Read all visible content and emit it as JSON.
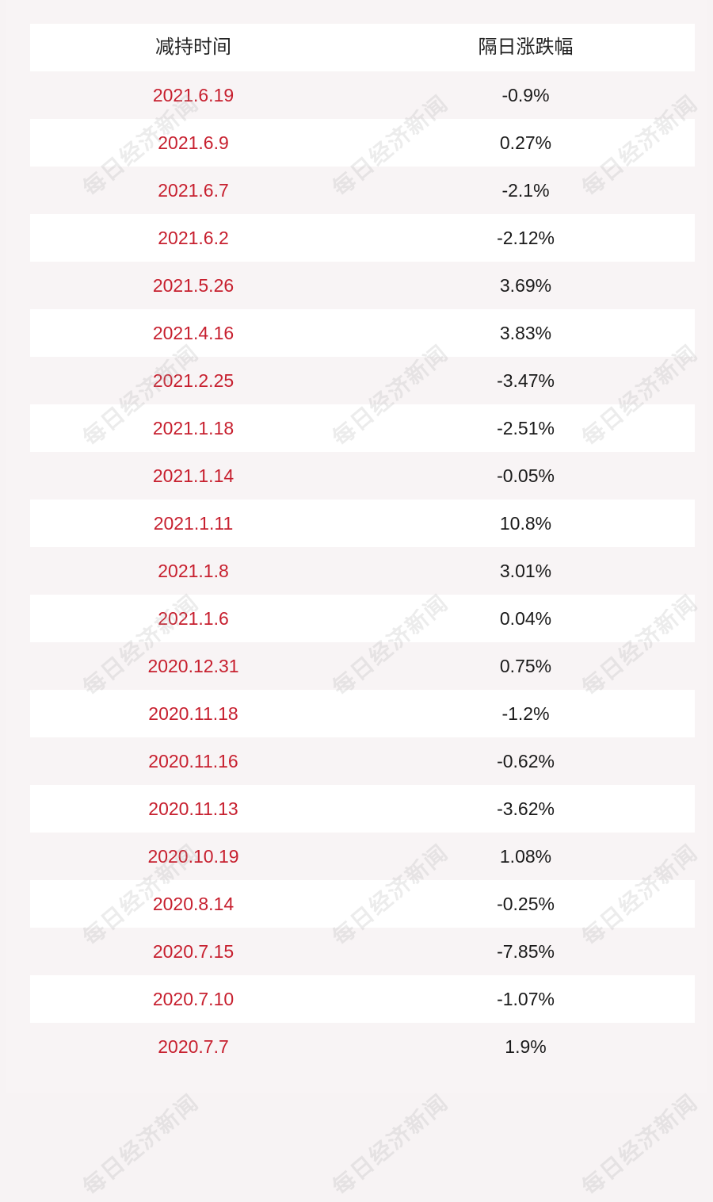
{
  "chart_data": {
    "type": "table",
    "columns": [
      "减持时间",
      "隔日涨跌幅"
    ],
    "rows": [
      [
        "2021.6.19",
        "-0.9%"
      ],
      [
        "2021.6.9",
        "0.27%"
      ],
      [
        "2021.6.7",
        "-2.1%"
      ],
      [
        "2021.6.2",
        "-2.12%"
      ],
      [
        "2021.5.26",
        "3.69%"
      ],
      [
        "2021.4.16",
        "3.83%"
      ],
      [
        "2021.2.25",
        "-3.47%"
      ],
      [
        "2021.1.18",
        "-2.51%"
      ],
      [
        "2021.1.14",
        "-0.05%"
      ],
      [
        "2021.1.11",
        "10.8%"
      ],
      [
        "2021.1.8",
        "3.01%"
      ],
      [
        "2021.1.6",
        "0.04%"
      ],
      [
        "2020.12.31",
        "0.75%"
      ],
      [
        "2020.11.18",
        "-1.2%"
      ],
      [
        "2020.11.16",
        "-0.62%"
      ],
      [
        "2020.11.13",
        "-3.62%"
      ],
      [
        "2020.10.19",
        "1.08%"
      ],
      [
        "2020.8.14",
        "-0.25%"
      ],
      [
        "2020.7.15",
        "-7.85%"
      ],
      [
        "2020.7.10",
        "-1.07%"
      ],
      [
        "2020.7.7",
        "1.9%"
      ]
    ],
    "colors": {
      "date": "#c7202f",
      "value": "#1a1a1a",
      "header": "#222222"
    }
  },
  "watermark": "每日经济新闻"
}
